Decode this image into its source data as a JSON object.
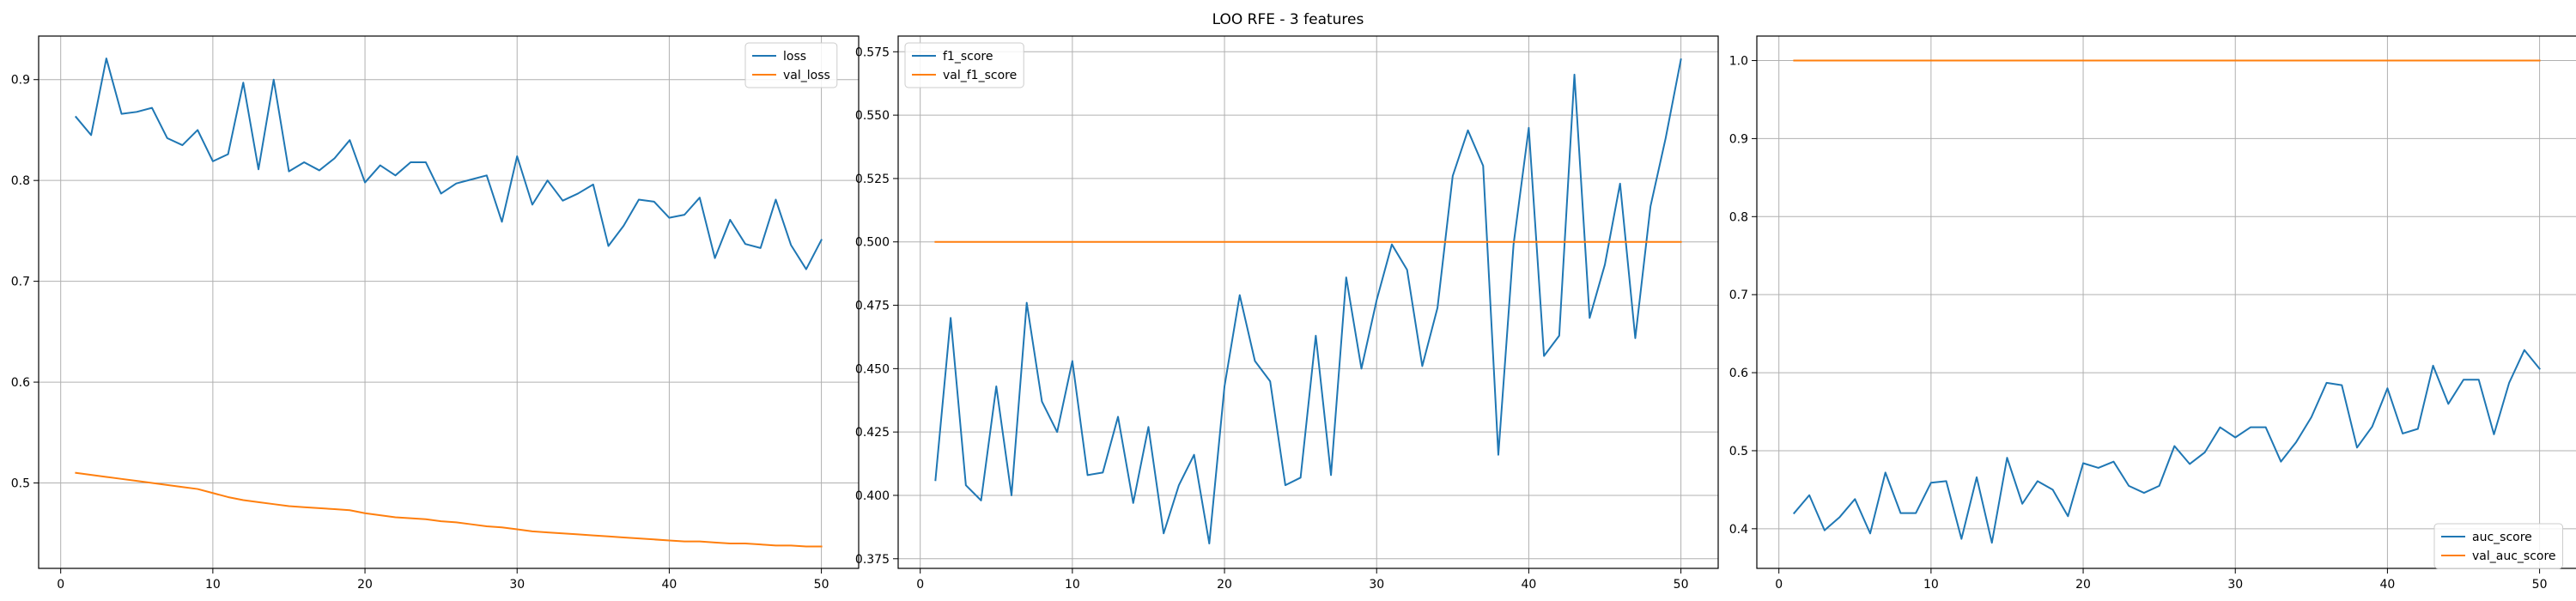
{
  "figure": {
    "suptitle": "LOO RFE - 3 features",
    "colors": {
      "series_1": "#1f77b4",
      "series_2": "#ff7f0e",
      "grid": "#b0b0b0",
      "axes": "#000000",
      "legend_edge": "#cccccc"
    }
  },
  "chart_data": [
    {
      "type": "line",
      "grid": true,
      "legend_loc": "upper right",
      "xlim": [
        -1.45,
        52.45
      ],
      "ylim": [
        0.4153,
        0.9432
      ],
      "xticks": [
        0,
        10,
        20,
        30,
        40,
        50
      ],
      "yticks": [
        0.5,
        0.6,
        0.7,
        0.8,
        0.9
      ],
      "yticklabels": [
        "0.5",
        "0.6",
        "0.7",
        "0.8",
        "0.9"
      ],
      "x": [
        1,
        2,
        3,
        4,
        5,
        6,
        7,
        8,
        9,
        10,
        11,
        12,
        13,
        14,
        15,
        16,
        17,
        18,
        19,
        20,
        21,
        22,
        23,
        24,
        25,
        26,
        27,
        28,
        29,
        30,
        31,
        32,
        33,
        34,
        35,
        36,
        37,
        38,
        39,
        40,
        41,
        42,
        43,
        44,
        45,
        46,
        47,
        48,
        49,
        50
      ],
      "series": [
        {
          "name": "loss",
          "color": "#1f77b4",
          "values": [
            0.863,
            0.845,
            0.921,
            0.866,
            0.868,
            0.872,
            0.842,
            0.835,
            0.85,
            0.819,
            0.826,
            0.897,
            0.811,
            0.9,
            0.809,
            0.818,
            0.81,
            0.822,
            0.84,
            0.798,
            0.815,
            0.805,
            0.818,
            0.818,
            0.787,
            0.797,
            0.801,
            0.805,
            0.759,
            0.824,
            0.776,
            0.8,
            0.78,
            0.787,
            0.796,
            0.735,
            0.755,
            0.781,
            0.779,
            0.763,
            0.766,
            0.783,
            0.723,
            0.761,
            0.737,
            0.733,
            0.781,
            0.736,
            0.712,
            0.741
          ]
        },
        {
          "name": "val_loss",
          "color": "#ff7f0e",
          "values": [
            0.51,
            0.508,
            0.506,
            0.504,
            0.502,
            0.5,
            0.498,
            0.496,
            0.494,
            0.49,
            0.486,
            0.483,
            0.481,
            0.479,
            0.477,
            0.476,
            0.475,
            0.474,
            0.473,
            0.47,
            0.468,
            0.466,
            0.465,
            0.464,
            0.462,
            0.461,
            0.459,
            0.457,
            0.456,
            0.454,
            0.452,
            0.451,
            0.45,
            0.449,
            0.448,
            0.447,
            0.446,
            0.445,
            0.444,
            0.443,
            0.442,
            0.442,
            0.441,
            0.44,
            0.44,
            0.439,
            0.438,
            0.438,
            0.437,
            0.437
          ]
        }
      ]
    },
    {
      "type": "line",
      "grid": true,
      "legend_loc": "upper left",
      "xlim": [
        -1.45,
        52.45
      ],
      "ylim": [
        0.3712,
        0.5812
      ],
      "xticks": [
        0,
        10,
        20,
        30,
        40,
        50
      ],
      "yticks": [
        0.375,
        0.4,
        0.425,
        0.45,
        0.475,
        0.5,
        0.525,
        0.55,
        0.575
      ],
      "yticklabels": [
        "0.375",
        "0.400",
        "0.425",
        "0.450",
        "0.475",
        "0.500",
        "0.525",
        "0.550",
        "0.575"
      ],
      "x": [
        1,
        2,
        3,
        4,
        5,
        6,
        7,
        8,
        9,
        10,
        11,
        12,
        13,
        14,
        15,
        16,
        17,
        18,
        19,
        20,
        21,
        22,
        23,
        24,
        25,
        26,
        27,
        28,
        29,
        30,
        31,
        32,
        33,
        34,
        35,
        36,
        37,
        38,
        39,
        40,
        41,
        42,
        43,
        44,
        45,
        46,
        47,
        48,
        49,
        50
      ],
      "series": [
        {
          "name": "f1_score",
          "color": "#1f77b4",
          "values": [
            0.406,
            0.47,
            0.404,
            0.398,
            0.443,
            0.4,
            0.476,
            0.437,
            0.425,
            0.453,
            0.408,
            0.409,
            0.431,
            0.397,
            0.427,
            0.385,
            0.404,
            0.416,
            0.381,
            0.443,
            0.479,
            0.453,
            0.445,
            0.404,
            0.407,
            0.463,
            0.408,
            0.486,
            0.45,
            0.477,
            0.499,
            0.489,
            0.451,
            0.474,
            0.526,
            0.544,
            0.53,
            0.416,
            0.499,
            0.545,
            0.455,
            0.463,
            0.566,
            0.47,
            0.491,
            0.523,
            0.462,
            0.514,
            0.541,
            0.572
          ]
        },
        {
          "name": "val_f1_score",
          "color": "#ff7f0e",
          "values": [
            0.5,
            0.5,
            0.5,
            0.5,
            0.5,
            0.5,
            0.5,
            0.5,
            0.5,
            0.5,
            0.5,
            0.5,
            0.5,
            0.5,
            0.5,
            0.5,
            0.5,
            0.5,
            0.5,
            0.5,
            0.5,
            0.5,
            0.5,
            0.5,
            0.5,
            0.5,
            0.5,
            0.5,
            0.5,
            0.5,
            0.5,
            0.5,
            0.5,
            0.5,
            0.5,
            0.5,
            0.5,
            0.5,
            0.5,
            0.5,
            0.5,
            0.5,
            0.5,
            0.5,
            0.5,
            0.5,
            0.5,
            0.5,
            0.5,
            0.5
          ]
        }
      ]
    },
    {
      "type": "line",
      "grid": true,
      "legend_loc": "lower right",
      "xlim": [
        -1.45,
        52.45
      ],
      "ylim": [
        0.3492,
        1.0314
      ],
      "xticks": [
        0,
        10,
        20,
        30,
        40,
        50
      ],
      "yticks": [
        0.4,
        0.5,
        0.6,
        0.7,
        0.8,
        0.9,
        1.0
      ],
      "yticklabels": [
        "0.4",
        "0.5",
        "0.6",
        "0.7",
        "0.8",
        "0.9",
        "1.0"
      ],
      "x": [
        1,
        2,
        3,
        4,
        5,
        6,
        7,
        8,
        9,
        10,
        11,
        12,
        13,
        14,
        15,
        16,
        17,
        18,
        19,
        20,
        21,
        22,
        23,
        24,
        25,
        26,
        27,
        28,
        29,
        30,
        31,
        32,
        33,
        34,
        35,
        36,
        37,
        38,
        39,
        40,
        41,
        42,
        43,
        44,
        45,
        46,
        47,
        48,
        49,
        50
      ],
      "series": [
        {
          "name": "auc_score",
          "color": "#1f77b4",
          "values": [
            0.42,
            0.443,
            0.398,
            0.415,
            0.438,
            0.394,
            0.472,
            0.42,
            0.42,
            0.459,
            0.461,
            0.387,
            0.466,
            0.382,
            0.491,
            0.432,
            0.461,
            0.45,
            0.416,
            0.484,
            0.478,
            0.486,
            0.455,
            0.446,
            0.455,
            0.506,
            0.483,
            0.498,
            0.53,
            0.517,
            0.53,
            0.53,
            0.486,
            0.511,
            0.543,
            0.587,
            0.584,
            0.504,
            0.531,
            0.58,
            0.522,
            0.528,
            0.609,
            0.56,
            0.591,
            0.591,
            0.521,
            0.587,
            0.629,
            0.605
          ]
        },
        {
          "name": "val_auc_score",
          "color": "#ff7f0e",
          "values": [
            1.0,
            1.0,
            1.0,
            1.0,
            1.0,
            1.0,
            1.0,
            1.0,
            1.0,
            1.0,
            1.0,
            1.0,
            1.0,
            1.0,
            1.0,
            1.0,
            1.0,
            1.0,
            1.0,
            1.0,
            1.0,
            1.0,
            1.0,
            1.0,
            1.0,
            1.0,
            1.0,
            1.0,
            1.0,
            1.0,
            1.0,
            1.0,
            1.0,
            1.0,
            1.0,
            1.0,
            1.0,
            1.0,
            1.0,
            1.0,
            1.0,
            1.0,
            1.0,
            1.0,
            1.0,
            1.0,
            1.0,
            1.0,
            1.0,
            1.0
          ]
        }
      ]
    }
  ]
}
